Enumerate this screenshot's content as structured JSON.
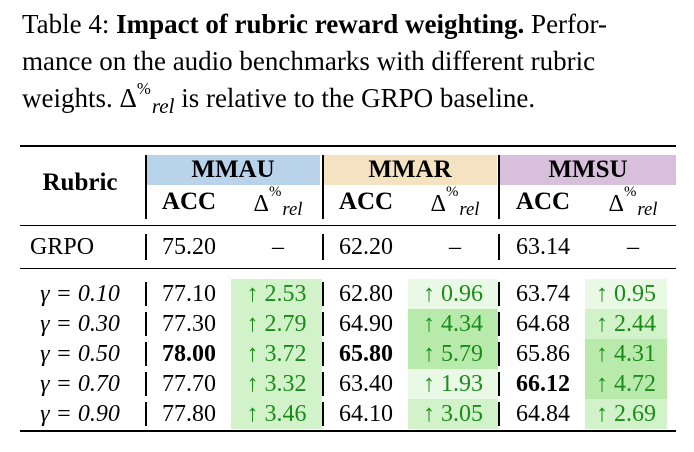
{
  "caption": {
    "prefix": "Table 4: ",
    "bold_title": "Impact of rubric reward weighting.",
    "text_line1_rest": " Perfor-",
    "text_line2": "mance on the audio benchmarks with different rubric",
    "text_line3_pre": "weights. ",
    "delta_symbol": "Δ",
    "delta_sup": "%",
    "delta_sub": "rel",
    "text_line3_post": " is relative to the GRPO baseline."
  },
  "header": {
    "rubric_label": "Rubric",
    "benchmarks": [
      {
        "name": "MMAU",
        "color": "#b9d4ea"
      },
      {
        "name": "MMAR",
        "color": "#f4e2c0"
      },
      {
        "name": "MMSU",
        "color": "#d8bfdc"
      }
    ],
    "acc_label": "ACC",
    "delta_symbol": "Δ",
    "delta_sup": "%",
    "delta_sub": "rel"
  },
  "baseline": {
    "label": "GRPO",
    "mmau_acc": "75.20",
    "mmau_delta": "–",
    "mmar_acc": "62.20",
    "mmar_delta": "–",
    "mmsu_acc": "63.14",
    "mmsu_delta": "–"
  },
  "rows": [
    {
      "gamma": "γ = 0.10",
      "mmau_acc": "77.10",
      "mmau_delta": "↑ 2.53",
      "mmar_acc": "62.80",
      "mmar_delta": "↑ 0.96",
      "mmsu_acc": "63.74",
      "mmsu_delta": "↑ 0.95"
    },
    {
      "gamma": "γ = 0.30",
      "mmau_acc": "77.30",
      "mmau_delta": "↑ 2.79",
      "mmar_acc": "64.90",
      "mmar_delta": "↑ 4.34",
      "mmsu_acc": "64.68",
      "mmsu_delta": "↑ 2.44"
    },
    {
      "gamma": "γ = 0.50",
      "mmau_acc": "78.00",
      "mmau_delta": "↑ 3.72",
      "mmar_acc": "65.80",
      "mmar_delta": "↑ 5.79",
      "mmsu_acc": "65.86",
      "mmsu_delta": "↑ 4.31"
    },
    {
      "gamma": "γ = 0.70",
      "mmau_acc": "77.70",
      "mmau_delta": "↑ 3.32",
      "mmar_acc": "63.40",
      "mmar_delta": "↑ 1.93",
      "mmsu_acc": "66.12",
      "mmsu_delta": "↑ 4.72"
    },
    {
      "gamma": "γ = 0.90",
      "mmau_acc": "77.80",
      "mmau_delta": "↑ 3.46",
      "mmar_acc": "64.10",
      "mmar_delta": "↑ 3.05",
      "mmsu_acc": "64.84",
      "mmsu_delta": "↑ 2.69"
    }
  ],
  "bold_cells": [
    "rows.2.mmau_acc",
    "rows.2.mmar_acc",
    "rows.3.mmsu_acc"
  ],
  "colors": {
    "delta_text": "#1a8c1a",
    "shade_light": "#eaf8e6",
    "shade_mid": "#d2f2c9",
    "shade_dark": "#b8ebab"
  }
}
